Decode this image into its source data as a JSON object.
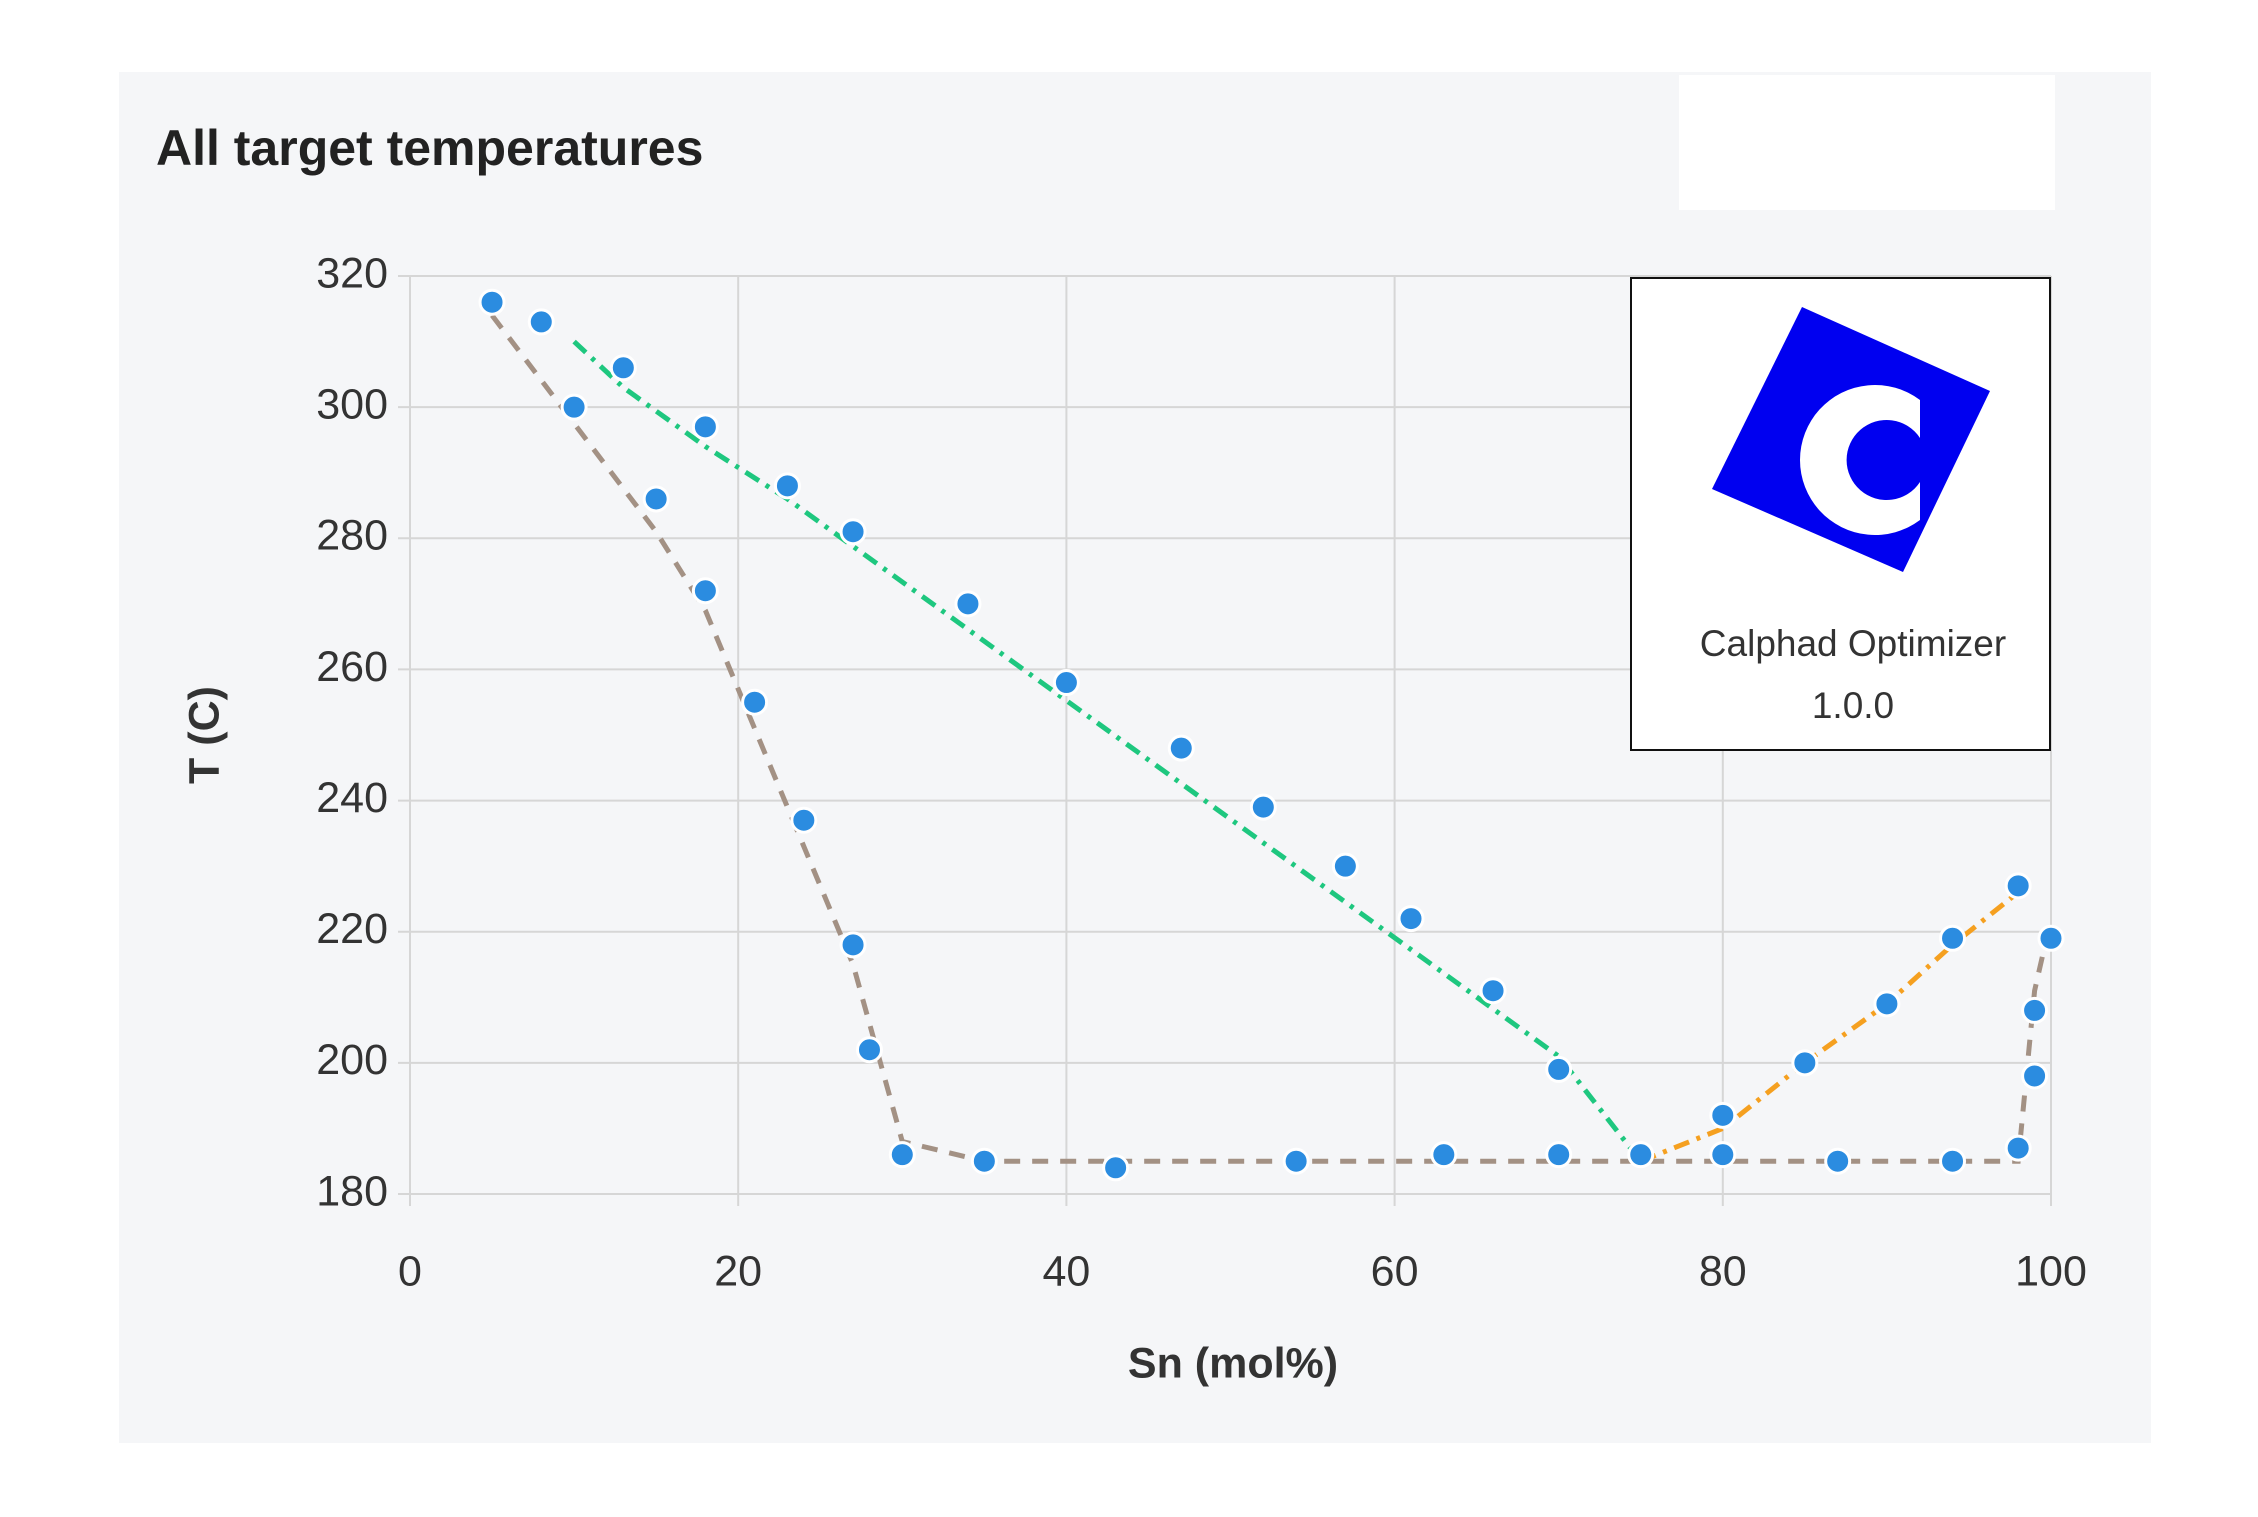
{
  "chart_data": {
    "type": "scatter",
    "title": "All target temperatures",
    "x_label": "Sn (mol%)",
    "y_label": "T (C)",
    "xlim": [
      0,
      100
    ],
    "xticks": [
      0,
      20,
      40,
      60,
      80,
      100
    ],
    "ylim": [
      180,
      320
    ],
    "yticks": [
      180,
      200,
      220,
      240,
      260,
      280,
      300,
      320
    ],
    "grid": true,
    "series": [
      {
        "kind": "line",
        "dash": "dash",
        "color": "#a39184",
        "x": [
          5,
          15,
          18,
          27,
          28,
          30,
          35,
          98,
          99,
          100
        ],
        "values": [
          314,
          281,
          269,
          215,
          206,
          188,
          185,
          185,
          211,
          222
        ]
      },
      {
        "kind": "line",
        "dash": "dashdot",
        "color": "#1ec77f",
        "x": [
          10,
          13,
          18,
          23,
          70,
          75
        ],
        "values": [
          310,
          303,
          294,
          286,
          201,
          185
        ]
      },
      {
        "kind": "line",
        "dash": "dashdot",
        "color": "#f5a020",
        "x": [
          75,
          80,
          85,
          90,
          94,
          98
        ],
        "values": [
          185,
          190,
          200,
          209,
          218,
          226
        ]
      },
      {
        "kind": "scatter",
        "color": "#2b8ce0",
        "x": [
          5,
          8,
          10,
          13,
          15,
          18,
          18,
          21,
          23,
          24,
          27,
          27,
          28,
          30,
          34,
          35,
          40,
          43,
          47,
          52,
          54,
          57,
          61,
          63,
          66,
          70,
          70,
          75,
          80,
          80,
          85,
          87,
          90,
          94,
          94,
          98,
          98,
          99,
          99,
          100
        ],
        "values": [
          316,
          313,
          300,
          306,
          286,
          297,
          272,
          255,
          288,
          237,
          281,
          218,
          202,
          186,
          270,
          185,
          258,
          184,
          248,
          239,
          185,
          230,
          222,
          186,
          211,
          199,
          186,
          186,
          192,
          186,
          200,
          185,
          209,
          219,
          185,
          227,
          187,
          198,
          208,
          219
        ]
      }
    ]
  },
  "about": {
    "name": "Calphad Optimizer",
    "version": "1.0.0"
  }
}
